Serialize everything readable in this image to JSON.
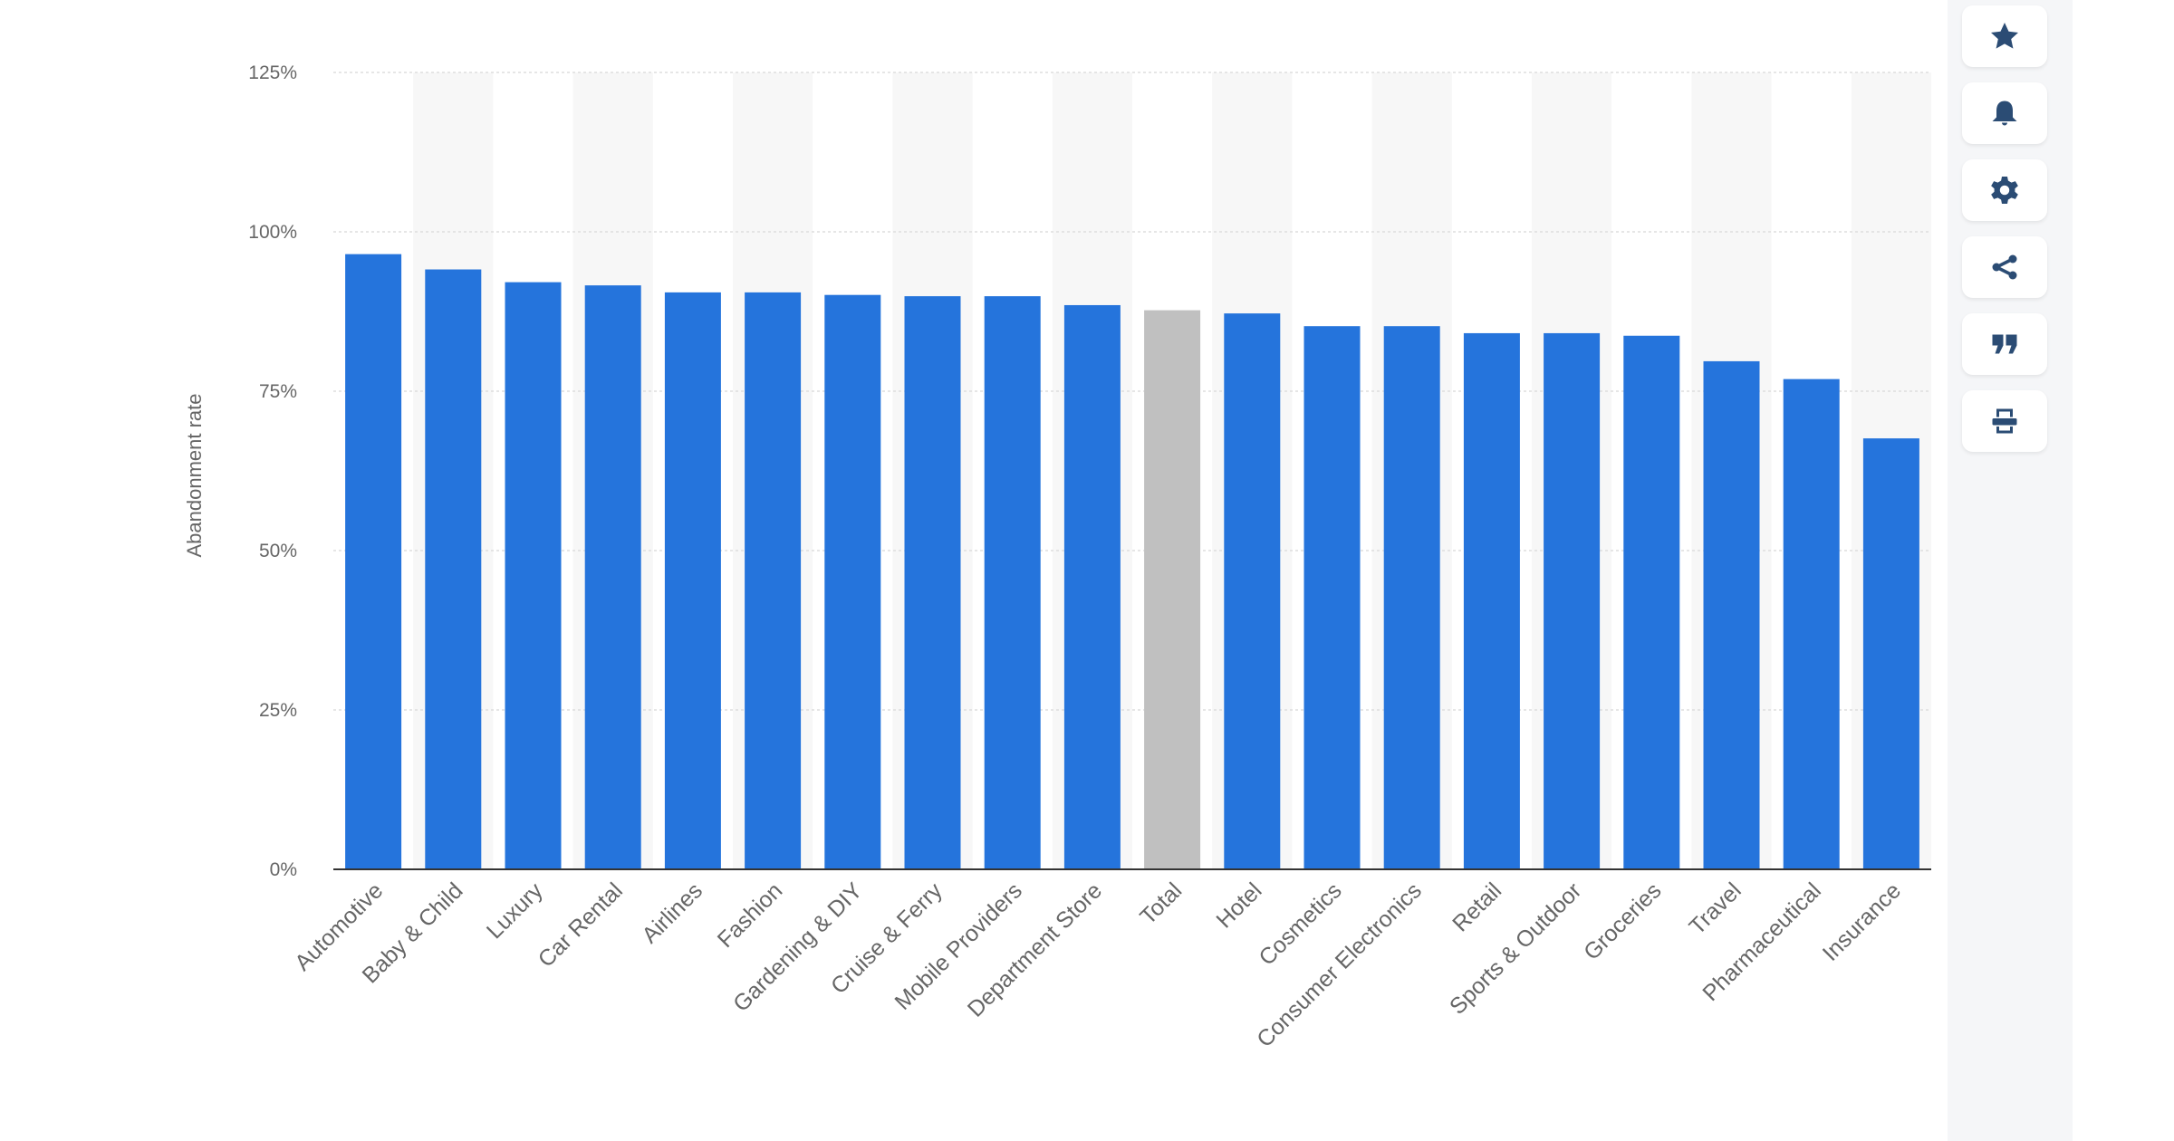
{
  "chart_data": {
    "type": "bar",
    "title": "",
    "xlabel": "",
    "ylabel": "Abandonment rate",
    "ylim": [
      0,
      125
    ],
    "yticks": [
      "0%",
      "25%",
      "50%",
      "75%",
      "100%",
      "125%"
    ],
    "ytick_values": [
      0,
      25,
      50,
      75,
      100,
      125
    ],
    "grid": true,
    "categories": [
      "Automotive",
      "Baby & Child",
      "Luxury",
      "Car Rental",
      "Airlines",
      "Fashion",
      "Gardening & DIY",
      "Cruise & Ferry",
      "Mobile Providers",
      "Department Store",
      "Total",
      "Hotel",
      "Cosmetics",
      "Consumer Electronics",
      "Retail",
      "Sports & Outdoor",
      "Groceries",
      "Travel",
      "Pharmaceutical",
      "Insurance"
    ],
    "values": [
      96.5,
      94.1,
      92.1,
      91.6,
      90.5,
      90.5,
      90.1,
      89.9,
      89.9,
      88.5,
      87.7,
      87.2,
      85.2,
      85.2,
      84.1,
      84.1,
      83.7,
      79.7,
      76.9,
      67.6
    ],
    "colors": {
      "bar": "#2574dc",
      "highlight": "#c0c0c0",
      "stripe": "#f7f7f7"
    },
    "highlight_category": "Total"
  },
  "toolbar": {
    "icons": [
      "star-icon",
      "bell-icon",
      "gear-icon",
      "share-icon",
      "quote-icon",
      "print-icon"
    ],
    "icon_color": "#2b4c74"
  }
}
